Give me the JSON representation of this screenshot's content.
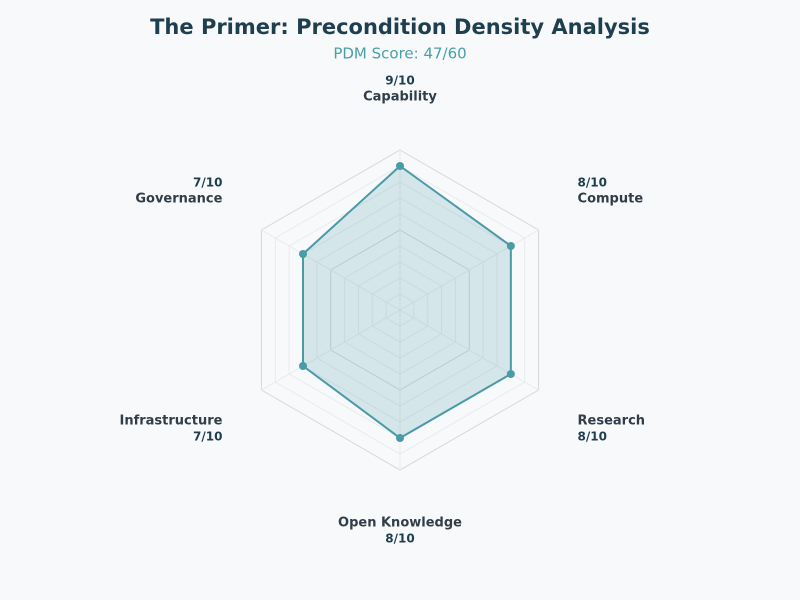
{
  "chart_data": {
    "type": "radar",
    "title": "The Primer: Precondition Density Analysis",
    "subtitle": "PDM Score: 47/60",
    "categories": [
      "Capability",
      "Compute",
      "Research",
      "Open Knowledge",
      "Infrastructure",
      "Governance"
    ],
    "values": [
      9,
      8,
      8,
      8,
      7,
      7
    ],
    "value_labels": [
      "9/10",
      "8/10",
      "8/10",
      "8/10",
      "7/10",
      "7/10"
    ],
    "color": "#4a9aa8",
    "rlim": [
      0,
      10
    ],
    "rticks": [
      1,
      2,
      3,
      4,
      5,
      6,
      7,
      8,
      9,
      10
    ],
    "grid": true
  }
}
